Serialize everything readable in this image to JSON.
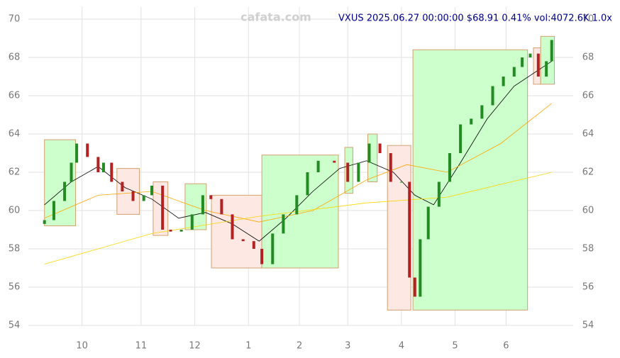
{
  "chart_data": {
    "type": "candlestick",
    "title": "VXUS 2025.06.27 00:00:00 $68.91 0.41% vol:4072.6K 1.0x",
    "watermark": "cafata.com",
    "x": [
      0,
      3.5,
      7.5,
      10,
      12,
      16,
      20,
      22,
      25,
      29,
      33,
      37,
      40,
      44,
      47,
      51,
      55,
      59,
      62,
      66,
      70,
      74,
      78,
      81,
      85,
      89,
      94,
      98,
      102,
      108,
      113,
      117,
      121,
      125,
      129,
      133,
      136,
      138,
      140,
      143,
      147,
      151,
      155,
      159,
      163,
      167,
      171,
      175,
      178,
      181,
      184,
      187,
      189
    ],
    "open": [
      59.3,
      59.5,
      60.5,
      61.5,
      62.5,
      63.5,
      62.8,
      62,
      62.5,
      61.5,
      61,
      60.5,
      60.8,
      61.3,
      59,
      58.9,
      59,
      59.8,
      60.8,
      60.6,
      59.8,
      58.5,
      58.4,
      58,
      57.2,
      58.8,
      59.8,
      60.8,
      62,
      62.6,
      62.5,
      61.5,
      62.5,
      63.5,
      63,
      61.5,
      61.5,
      56.5,
      55.5,
      58.5,
      60.2,
      61.5,
      63,
      64.5,
      64.8,
      65.5,
      66.5,
      67,
      67.5,
      68,
      68.2,
      67,
      67.8
    ],
    "close": [
      59.5,
      60.5,
      61.5,
      62.5,
      63.5,
      62.8,
      62,
      62.5,
      61.5,
      61,
      60.5,
      60.8,
      61.3,
      59,
      58.9,
      59,
      59.8,
      60.8,
      60.6,
      59.8,
      58.5,
      58.4,
      58,
      57.2,
      58.8,
      59.8,
      60.8,
      62,
      62.6,
      62.5,
      61.5,
      62.5,
      63.5,
      63,
      61.5,
      61.5,
      56.5,
      55.5,
      58.5,
      60.2,
      61.5,
      63,
      64.5,
      64.8,
      65.5,
      66.5,
      67,
      67.5,
      68,
      68.2,
      67,
      67.8,
      68.91
    ],
    "up_color": "#228b22",
    "down_color": "#b22222",
    "boxes": [
      {
        "x": [
          0,
          11.6
        ],
        "y": [
          59.2,
          63.7
        ],
        "color": "#ccffcc"
      },
      {
        "x": [
          27,
          35.4
        ],
        "y": [
          59.8,
          62.2
        ],
        "color": "#fde8e4"
      },
      {
        "x": [
          40.5,
          46
        ],
        "y": [
          58.7,
          61.5
        ],
        "color": "#fde8e4"
      },
      {
        "x": [
          52.4,
          60.3
        ],
        "y": [
          59.0,
          61.4
        ],
        "color": "#ccffcc"
      },
      {
        "x": [
          62.2,
          81
        ],
        "y": [
          57.0,
          60.8
        ],
        "color": "#fde8e4"
      },
      {
        "x": [
          81,
          109.5
        ],
        "y": [
          57.0,
          62.9
        ],
        "color": "#ccffcc"
      },
      {
        "x": [
          111.9,
          114.9
        ],
        "y": [
          60.9,
          63.3
        ],
        "color": "#ccffcc"
      },
      {
        "x": [
          120.5,
          124
        ],
        "y": [
          61.5,
          64.0
        ],
        "color": "#ccffcc"
      },
      {
        "x": [
          127.8,
          136.5
        ],
        "y": [
          54.8,
          63.4
        ],
        "color": "#fde8e4"
      },
      {
        "x": [
          137.3,
          180
        ],
        "y": [
          54.8,
          68.4
        ],
        "color": "#ccffcc"
      },
      {
        "x": [
          182.2,
          184.9
        ],
        "y": [
          66.6,
          68.5
        ],
        "color": "#fde8e4"
      },
      {
        "x": [
          184.9,
          190
        ],
        "y": [
          66.6,
          69.1
        ],
        "color": "#ccffcc"
      }
    ],
    "lines": [
      {
        "color": "#000000",
        "x": [
          0,
          10,
          20,
          30,
          40,
          50,
          60,
          70,
          80,
          90,
          100,
          110,
          120,
          130,
          138,
          145,
          155,
          165,
          175,
          189
        ],
        "values": [
          60.3,
          61.5,
          62.3,
          61.2,
          60.6,
          59.6,
          59.9,
          59.3,
          58.4,
          59.6,
          61.0,
          62.2,
          62.6,
          62.0,
          60.8,
          60.3,
          62.5,
          64.8,
          66.5,
          67.8
        ]
      },
      {
        "color": "#ffa500",
        "x": [
          0,
          20,
          40,
          60,
          80,
          100,
          120,
          135,
          150,
          170,
          189
        ],
        "values": [
          59.6,
          60.8,
          61.0,
          60.0,
          59.4,
          60.0,
          61.6,
          62.4,
          62.0,
          63.5,
          65.6
        ]
      },
      {
        "color": "#ffd700",
        "x": [
          0,
          40,
          80,
          120,
          150,
          189
        ],
        "values": [
          57.2,
          58.8,
          59.7,
          60.4,
          60.7,
          62.0
        ]
      }
    ],
    "xlim": [
      -6,
      197
    ],
    "xticks": [
      {
        "value": 14,
        "label": "10"
      },
      {
        "value": 36,
        "label": "11"
      },
      {
        "value": 56,
        "label": "12"
      },
      {
        "value": 76,
        "label": "1"
      },
      {
        "value": 95,
        "label": "2"
      },
      {
        "value": 113,
        "label": "3"
      },
      {
        "value": 133,
        "label": "4"
      },
      {
        "value": 153,
        "label": "5"
      },
      {
        "value": 172,
        "label": "6"
      }
    ],
    "ylim": [
      54,
      70
    ],
    "yticks": [
      54,
      56,
      58,
      60,
      62,
      64,
      66,
      68,
      70
    ],
    "grid": true
  }
}
